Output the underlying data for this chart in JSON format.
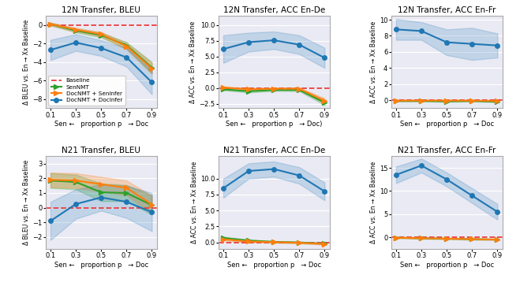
{
  "x": [
    0.1,
    0.3,
    0.5,
    0.7,
    0.9
  ],
  "plots": {
    "12N_BLEU": {
      "title": "12N Transfer, BLEU",
      "ylabel": "Δ BLEU vs. En → Xx Baseline",
      "ylim": [
        -9,
        1.0
      ],
      "yticks": [
        0,
        -2,
        -4,
        -6,
        -8
      ],
      "SenNMT": [
        0.1,
        -0.6,
        -1.1,
        -2.2,
        -4.6
      ],
      "SenNMT_ci": [
        0.15,
        0.2,
        0.25,
        0.35,
        0.6
      ],
      "DocSeninfer": [
        0.1,
        -0.5,
        -1.0,
        -2.3,
        -4.7
      ],
      "DocSeninfer_ci": [
        0.15,
        0.2,
        0.25,
        0.35,
        0.6
      ],
      "DocDocinfer": [
        -2.7,
        -1.9,
        -2.5,
        -3.5,
        -6.2
      ],
      "DocDocinfer_ci": [
        1.1,
        0.9,
        0.85,
        1.0,
        1.3
      ],
      "has_legend": true
    },
    "12N_ACC_De": {
      "title": "12N Transfer, ACC En-De",
      "ylabel": "Δ ACC vs. En → Xx Baseline",
      "ylim": [
        -3.2,
        11.5
      ],
      "yticks": [
        -2.5,
        0.0,
        2.5,
        5.0,
        7.5,
        10.0
      ],
      "SenNMT": [
        -0.2,
        -0.5,
        -0.3,
        -0.3,
        -2.3
      ],
      "SenNMT_ci": [
        0.15,
        0.2,
        0.15,
        0.2,
        0.4
      ],
      "DocSeninfer": [
        0.1,
        -0.2,
        -0.1,
        -0.1,
        -2.0
      ],
      "DocSeninfer_ci": [
        0.15,
        0.2,
        0.15,
        0.2,
        0.4
      ],
      "DocDocinfer": [
        6.2,
        7.3,
        7.6,
        6.9,
        4.8
      ],
      "DocDocinfer_ci": [
        2.2,
        1.5,
        1.4,
        1.5,
        1.6
      ],
      "has_legend": false
    },
    "12N_ACC_Fr": {
      "title": "12N Transfer, ACC En-Fr",
      "ylabel": "Δ ACC vs. En → Xx Baseline",
      "ylim": [
        -1.0,
        10.5
      ],
      "yticks": [
        0,
        2,
        4,
        6,
        8,
        10
      ],
      "SenNMT": [
        -0.1,
        -0.1,
        -0.15,
        -0.1,
        -0.2
      ],
      "SenNMT_ci": [
        0.05,
        0.05,
        0.05,
        0.05,
        0.05
      ],
      "DocSeninfer": [
        -0.05,
        -0.05,
        -0.05,
        -0.05,
        -0.1
      ],
      "DocSeninfer_ci": [
        0.05,
        0.05,
        0.05,
        0.05,
        0.05
      ],
      "DocDocinfer": [
        8.8,
        8.6,
        7.2,
        7.0,
        6.8
      ],
      "DocDocinfer_ci": [
        1.3,
        1.1,
        1.6,
        2.0,
        1.5
      ],
      "has_legend": false
    },
    "N21_BLEU": {
      "title": "N21 Transfer, BLEU",
      "ylabel": "Δ BLEU vs. En → Xx Baseline",
      "ylim": [
        -2.8,
        3.5
      ],
      "yticks": [
        -2,
        -1,
        0,
        1,
        2,
        3
      ],
      "SenNMT": [
        1.85,
        1.75,
        1.05,
        1.0,
        0.18
      ],
      "SenNMT_ci": [
        0.5,
        0.5,
        0.6,
        0.55,
        0.65
      ],
      "DocSeninfer": [
        1.9,
        1.85,
        1.6,
        1.35,
        0.22
      ],
      "DocSeninfer_ci": [
        0.5,
        0.5,
        0.5,
        0.5,
        0.6
      ],
      "DocDocinfer": [
        -0.9,
        0.25,
        0.7,
        0.4,
        -0.3
      ],
      "DocDocinfer_ci": [
        1.3,
        1.0,
        0.9,
        1.1,
        1.3
      ],
      "has_legend": false
    },
    "N21_ACC_De": {
      "title": "N21 Transfer, ACC En-De",
      "ylabel": "Δ ACC vs. En → Xx Baseline",
      "ylim": [
        -1.0,
        13.5
      ],
      "yticks": [
        0.0,
        2.5,
        5.0,
        7.5,
        10.0
      ],
      "SenNMT": [
        0.7,
        0.3,
        0.1,
        0.0,
        -0.2
      ],
      "SenNMT_ci": [
        0.2,
        0.15,
        0.1,
        0.1,
        0.1
      ],
      "DocSeninfer": [
        0.5,
        0.15,
        0.05,
        -0.05,
        -0.25
      ],
      "DocSeninfer_ci": [
        0.2,
        0.15,
        0.1,
        0.1,
        0.1
      ],
      "DocDocinfer": [
        8.5,
        11.2,
        11.5,
        10.5,
        8.0
      ],
      "DocDocinfer_ci": [
        1.5,
        1.2,
        1.2,
        1.3,
        1.4
      ],
      "has_legend": false
    },
    "N21_ACC_Fr": {
      "title": "N21 Transfer, ACC En-Fr",
      "ylabel": "Δ ACC vs. En → Xx Baseline",
      "ylim": [
        -2.5,
        17.5
      ],
      "yticks": [
        0,
        5,
        10,
        15
      ],
      "SenNMT": [
        -0.1,
        -0.2,
        -0.3,
        -0.4,
        -0.5
      ],
      "SenNMT_ci": [
        0.1,
        0.1,
        0.1,
        0.1,
        0.1
      ],
      "DocSeninfer": [
        -0.1,
        -0.2,
        -0.3,
        -0.4,
        -0.5
      ],
      "DocSeninfer_ci": [
        0.1,
        0.1,
        0.1,
        0.1,
        0.1
      ],
      "DocDocinfer": [
        13.5,
        15.5,
        12.5,
        9.0,
        5.5
      ],
      "DocDocinfer_ci": [
        1.8,
        1.5,
        1.5,
        1.6,
        1.7
      ],
      "has_legend": false
    }
  },
  "colors": {
    "baseline": "#e84040",
    "SenNMT": "#2ca02c",
    "DocSeninfer": "#ff7f0e",
    "DocDocinfer": "#1f77b4"
  },
  "legend_labels": {
    "baseline": "Baseline",
    "SenNMT": "SenNMT",
    "DocSeninfer": "DocNMT + SenInfer",
    "DocDocinfer": "DocNMT + DocInfer"
  },
  "xticklabels": [
    "0.1",
    "0.3",
    "0.5",
    "0.7",
    "0.9"
  ],
  "plot_order": [
    "12N_BLEU",
    "12N_ACC_De",
    "12N_ACC_Fr",
    "N21_BLEU",
    "N21_ACC_De",
    "N21_ACC_Fr"
  ]
}
